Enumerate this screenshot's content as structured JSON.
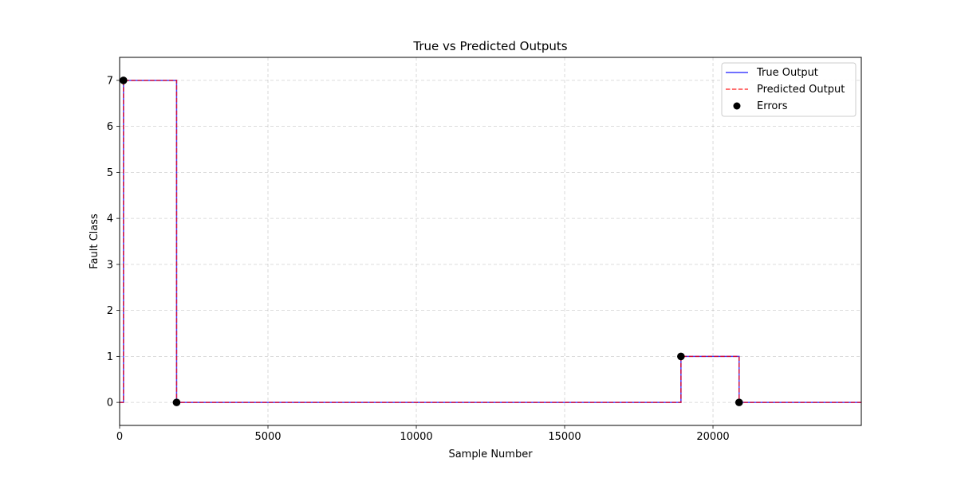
{
  "chart_data": {
    "type": "line",
    "title": "True vs Predicted Outputs",
    "xlabel": "Sample Number",
    "ylabel": "Fault Class",
    "xlim": [
      0,
      24999
    ],
    "ylim": [
      -0.5,
      7.5
    ],
    "xticks": [
      0,
      5000,
      10000,
      15000,
      20000
    ],
    "xtick_labels": [
      "0",
      "5000",
      "10000",
      "15000",
      "20000"
    ],
    "yticks": [
      0,
      1,
      2,
      3,
      4,
      5,
      6,
      7
    ],
    "ytick_labels": [
      "0",
      "1",
      "2",
      "3",
      "4",
      "5",
      "6",
      "7"
    ],
    "grid": true,
    "legend_position": "top-right",
    "series": [
      {
        "name": "True Output",
        "style": "solid",
        "color": "#0000ff",
        "x": [
          0,
          130,
          130,
          1920,
          1920,
          18920,
          18920,
          20880,
          20880,
          24999
        ],
        "y": [
          0,
          0,
          7,
          7,
          0,
          0,
          1,
          1,
          0,
          0
        ]
      },
      {
        "name": "Predicted Output",
        "style": "dashed",
        "color": "#ff0000",
        "x": [
          0,
          130,
          130,
          1920,
          1920,
          18920,
          18920,
          20880,
          20880,
          24999
        ],
        "y": [
          0,
          0,
          7,
          7,
          0,
          0,
          1,
          1,
          0,
          0
        ]
      },
      {
        "name": "Errors",
        "style": "scatter",
        "color": "#000000",
        "x": [
          130,
          1920,
          18920,
          20880
        ],
        "y": [
          7,
          0,
          1,
          0
        ]
      }
    ]
  }
}
